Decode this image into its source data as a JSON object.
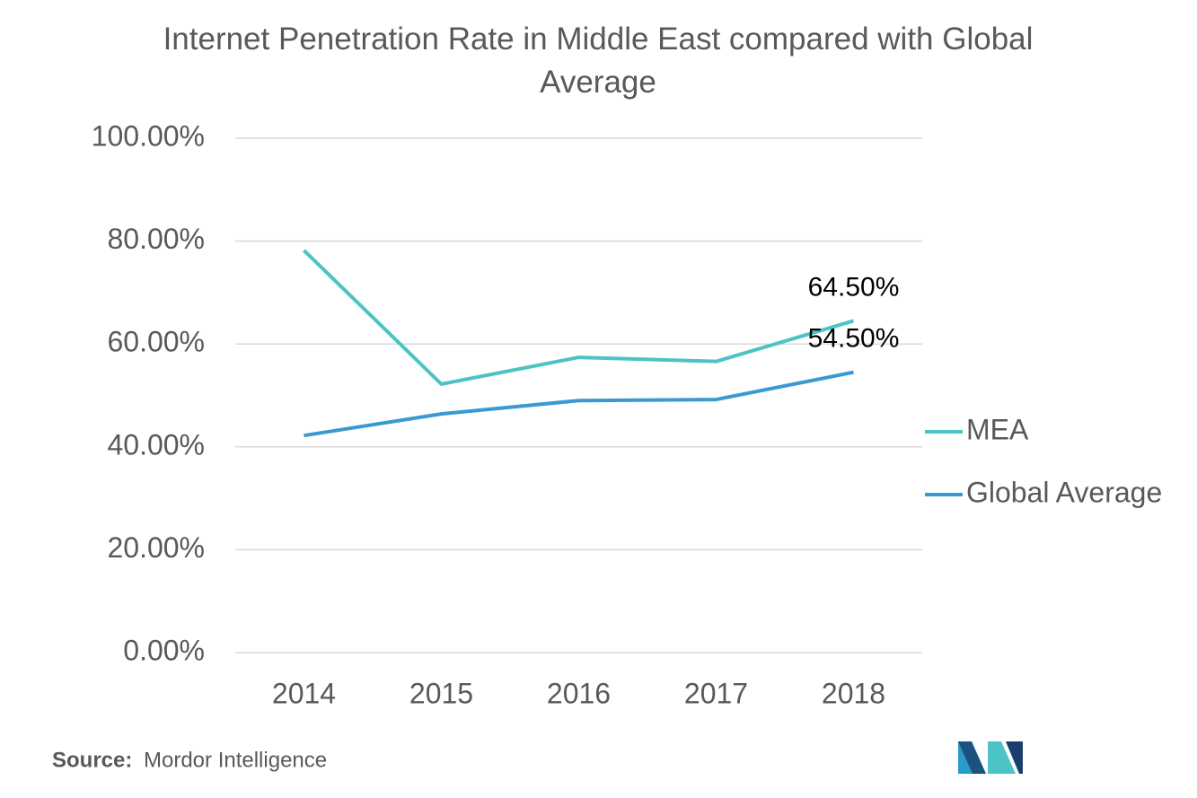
{
  "chart_data": {
    "type": "line",
    "title": "Internet Penetration Rate  in Middle East compared with Global Average",
    "categories": [
      "2014",
      "2015",
      "2016",
      "2017",
      "2018"
    ],
    "series": [
      {
        "name": "MEA",
        "color": "#4cc3c6",
        "values": [
          78.2,
          52.2,
          57.4,
          56.6,
          64.5
        ],
        "value_labels": [
          null,
          null,
          null,
          null,
          "64.50%"
        ]
      },
      {
        "name": "Global Average",
        "color": "#3a9ad0",
        "values": [
          42.2,
          46.4,
          49.0,
          49.2,
          54.5
        ],
        "value_labels": [
          null,
          null,
          null,
          null,
          "54.50%"
        ]
      }
    ],
    "ylim": [
      0,
      100
    ],
    "yticks": [
      {
        "value": 0,
        "label": "0.00%"
      },
      {
        "value": 20,
        "label": "20.00%"
      },
      {
        "value": 40,
        "label": "40.00%"
      },
      {
        "value": 60,
        "label": "60.00%"
      },
      {
        "value": 80,
        "label": "80.00%"
      },
      {
        "value": 100,
        "label": "100.00%"
      }
    ],
    "grid": true,
    "legend": "right",
    "source": {
      "label": "Source:",
      "text": "Mordor Intelligence"
    }
  }
}
